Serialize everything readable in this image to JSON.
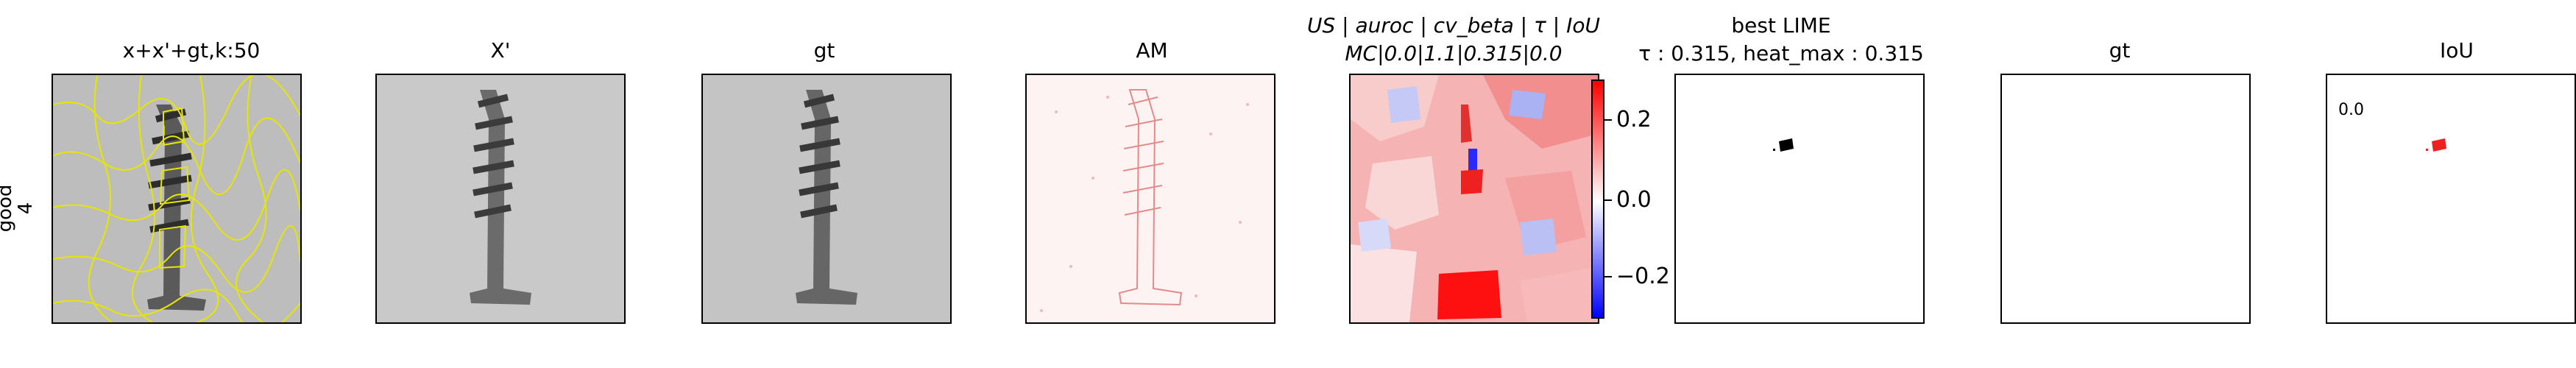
{
  "row_label": {
    "line1": "good",
    "line2": "4"
  },
  "panels": [
    {
      "title": "x+x'+gt,k:50"
    },
    {
      "title": "X'"
    },
    {
      "title": "gt"
    },
    {
      "title": "AM"
    },
    {
      "title_line1": "US | auroc | cv_beta | τ | IoU",
      "title_line2": "MC|0.0|1.1|0.315|0.0"
    },
    {
      "title_line1": "best LIME",
      "title_line2": "τ : 0.315, heat_max : 0.315"
    },
    {
      "title": "gt"
    },
    {
      "title": "IoU",
      "inset": "0.0"
    }
  ],
  "colorbar": {
    "ticks": [
      {
        "value": 0.2,
        "label": "0.2"
      },
      {
        "value": 0.0,
        "label": "0.0"
      },
      {
        "value": -0.2,
        "label": "−0.2"
      }
    ]
  },
  "colors": {
    "segment_lines": "#e6e600",
    "heat_red": "#ff2020",
    "heat_blue": "#5060ff"
  }
}
